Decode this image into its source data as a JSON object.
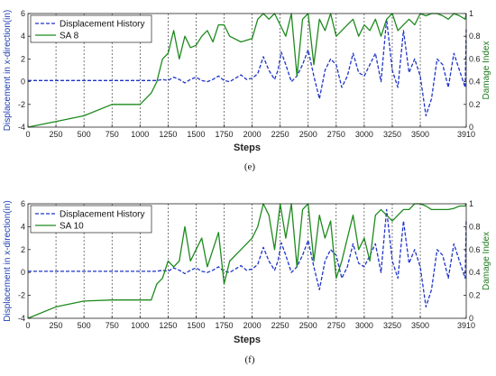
{
  "chart_data": [
    {
      "type": "line",
      "caption": "(e)",
      "xlabel": "Steps",
      "ylabel_left": "Displacement in x-direction(in)",
      "ylabel_right": "Damage Index",
      "xlim": [
        0,
        3910
      ],
      "ylim_left": [
        -4,
        6
      ],
      "ylim_right": [
        0,
        1
      ],
      "x_ticks": [
        0,
        250,
        500,
        750,
        1000,
        1250,
        1500,
        1750,
        2000,
        2250,
        2500,
        2750,
        3000,
        3250,
        3500,
        3910
      ],
      "y_left_ticks": [
        -4,
        -2,
        0,
        2,
        4,
        6
      ],
      "y_right_ticks": [
        0,
        0.2,
        0.4,
        0.6,
        0.8,
        1
      ],
      "grid": "vertical-dashed",
      "legend_position": "top-left",
      "series": [
        {
          "name": "Displacement History",
          "axis": "left",
          "color": "#1f35c8",
          "style": "dashed",
          "x": [
            0,
            250,
            500,
            750,
            1000,
            1100,
            1150,
            1200,
            1250,
            1300,
            1350,
            1400,
            1450,
            1500,
            1550,
            1600,
            1650,
            1700,
            1750,
            1800,
            1850,
            1900,
            1950,
            2000,
            2050,
            2100,
            2150,
            2200,
            2230,
            2260,
            2300,
            2350,
            2400,
            2450,
            2500,
            2550,
            2600,
            2650,
            2700,
            2750,
            2800,
            2850,
            2900,
            2950,
            3000,
            3050,
            3100,
            3150,
            3200,
            3250,
            3300,
            3350,
            3400,
            3450,
            3500,
            3550,
            3600,
            3650,
            3700,
            3750,
            3800,
            3850,
            3900,
            3910
          ],
          "y": [
            0.1,
            0.1,
            0.1,
            0.1,
            0.1,
            0.1,
            0.1,
            0.2,
            0.1,
            0.4,
            0.2,
            -0.1,
            0.2,
            0.4,
            0.1,
            0.0,
            0.2,
            0.5,
            0.1,
            0.0,
            0.3,
            0.6,
            0.2,
            0.3,
            0.7,
            2.2,
            1.0,
            0.2,
            1.0,
            2.6,
            1.5,
            0.0,
            0.5,
            1.5,
            2.8,
            0.5,
            -1.5,
            1.0,
            2.0,
            1.5,
            -0.5,
            0.5,
            2.5,
            0.8,
            0.5,
            1.5,
            2.5,
            0.0,
            5.5,
            1.0,
            -0.5,
            4.5,
            0.8,
            2.0,
            0.5,
            -3.0,
            -1.5,
            2.0,
            1.5,
            -0.5,
            2.5,
            1.0,
            -0.5,
            4.6
          ]
        },
        {
          "name": "SA 8",
          "axis": "right",
          "color": "#1d8a1d",
          "style": "solid",
          "x": [
            0,
            250,
            500,
            750,
            1000,
            1100,
            1150,
            1200,
            1250,
            1300,
            1350,
            1400,
            1450,
            1500,
            1550,
            1600,
            1650,
            1700,
            1750,
            1800,
            1900,
            2000,
            2050,
            2100,
            2150,
            2200,
            2250,
            2300,
            2350,
            2400,
            2450,
            2500,
            2550,
            2600,
            2650,
            2700,
            2750,
            2800,
            2850,
            2900,
            2950,
            3000,
            3050,
            3100,
            3150,
            3200,
            3250,
            3300,
            3350,
            3400,
            3450,
            3500,
            3550,
            3600,
            3650,
            3700,
            3750,
            3800,
            3850,
            3900,
            3910
          ],
          "y": [
            0.0,
            0.05,
            0.1,
            0.2,
            0.2,
            0.3,
            0.4,
            0.6,
            0.65,
            0.85,
            0.6,
            0.8,
            0.7,
            0.72,
            0.8,
            0.85,
            0.75,
            0.9,
            0.9,
            0.8,
            0.75,
            0.78,
            0.95,
            1.0,
            0.95,
            1.0,
            0.9,
            0.8,
            1.0,
            0.45,
            0.95,
            1.0,
            0.55,
            0.95,
            0.85,
            1.0,
            0.8,
            0.85,
            0.9,
            0.95,
            0.8,
            0.9,
            0.85,
            0.95,
            0.8,
            0.95,
            1.0,
            0.85,
            0.9,
            0.95,
            0.9,
            1.0,
            0.98,
            1.0,
            1.0,
            0.98,
            0.95,
            1.0,
            0.98,
            0.95,
            1.0
          ]
        }
      ]
    },
    {
      "type": "line",
      "caption": "(f)",
      "xlabel": "Steps",
      "ylabel_left": "Displacement in x-direction(in)",
      "ylabel_right": "Damage Index",
      "xlim": [
        0,
        3910
      ],
      "ylim_left": [
        -4,
        6
      ],
      "ylim_right": [
        0,
        1
      ],
      "x_ticks": [
        0,
        250,
        500,
        750,
        1000,
        1250,
        1500,
        1750,
        2000,
        2250,
        2500,
        2750,
        3000,
        3250,
        3500,
        3910
      ],
      "y_left_ticks": [
        -4,
        -2,
        0,
        2,
        4,
        6
      ],
      "y_right_ticks": [
        0,
        0.2,
        0.4,
        0.6,
        0.8,
        1
      ],
      "grid": "vertical-dashed",
      "legend_position": "top-left",
      "series": [
        {
          "name": "Displacement History",
          "axis": "left",
          "color": "#1f35c8",
          "style": "dashed",
          "x": [
            0,
            250,
            500,
            750,
            1000,
            1100,
            1150,
            1200,
            1250,
            1300,
            1350,
            1400,
            1450,
            1500,
            1550,
            1600,
            1650,
            1700,
            1750,
            1800,
            1850,
            1900,
            1950,
            2000,
            2050,
            2100,
            2150,
            2200,
            2230,
            2260,
            2300,
            2350,
            2400,
            2450,
            2500,
            2550,
            2600,
            2650,
            2700,
            2750,
            2800,
            2850,
            2900,
            2950,
            3000,
            3050,
            3100,
            3150,
            3200,
            3250,
            3300,
            3350,
            3400,
            3450,
            3500,
            3550,
            3600,
            3650,
            3700,
            3750,
            3800,
            3850,
            3900,
            3910
          ],
          "y": [
            0.1,
            0.1,
            0.1,
            0.1,
            0.1,
            0.1,
            0.1,
            0.2,
            0.1,
            0.4,
            0.2,
            -0.1,
            0.2,
            0.4,
            0.1,
            0.0,
            0.2,
            0.5,
            0.1,
            0.0,
            0.3,
            0.6,
            0.2,
            0.3,
            0.7,
            2.2,
            1.0,
            0.2,
            1.0,
            2.6,
            1.5,
            0.0,
            0.5,
            1.5,
            2.8,
            0.5,
            -1.5,
            1.0,
            2.0,
            1.5,
            -0.5,
            0.5,
            2.5,
            0.8,
            0.5,
            1.5,
            2.5,
            0.0,
            5.5,
            1.0,
            -0.5,
            4.5,
            0.8,
            2.0,
            0.5,
            -3.0,
            -1.5,
            2.0,
            1.5,
            -0.5,
            2.5,
            1.0,
            -0.5,
            4.6
          ]
        },
        {
          "name": "SA 10",
          "axis": "right",
          "color": "#1d8a1d",
          "style": "solid",
          "x": [
            0,
            250,
            500,
            750,
            1000,
            1100,
            1150,
            1200,
            1250,
            1300,
            1350,
            1400,
            1450,
            1500,
            1550,
            1600,
            1650,
            1700,
            1750,
            1800,
            1900,
            2000,
            2050,
            2100,
            2150,
            2200,
            2250,
            2300,
            2350,
            2400,
            2450,
            2500,
            2550,
            2600,
            2650,
            2700,
            2750,
            2800,
            2850,
            2900,
            2950,
            3000,
            3050,
            3100,
            3150,
            3200,
            3250,
            3300,
            3350,
            3400,
            3450,
            3500,
            3550,
            3600,
            3650,
            3700,
            3750,
            3800,
            3850,
            3900,
            3910
          ],
          "y": [
            0.0,
            0.1,
            0.15,
            0.16,
            0.16,
            0.16,
            0.3,
            0.35,
            0.5,
            0.45,
            0.5,
            0.8,
            0.5,
            0.6,
            0.7,
            0.45,
            0.6,
            0.75,
            0.3,
            0.5,
            0.6,
            0.7,
            0.8,
            1.0,
            0.9,
            0.6,
            1.0,
            0.7,
            1.0,
            0.45,
            0.95,
            1.0,
            0.5,
            0.9,
            0.7,
            0.85,
            0.35,
            0.5,
            0.7,
            0.9,
            0.6,
            0.7,
            0.5,
            0.9,
            0.95,
            0.9,
            0.85,
            0.9,
            0.95,
            0.95,
            1.0,
            1.0,
            0.98,
            0.95,
            0.95,
            0.95,
            0.95,
            0.96,
            0.98,
            0.98,
            1.0
          ]
        }
      ]
    }
  ]
}
